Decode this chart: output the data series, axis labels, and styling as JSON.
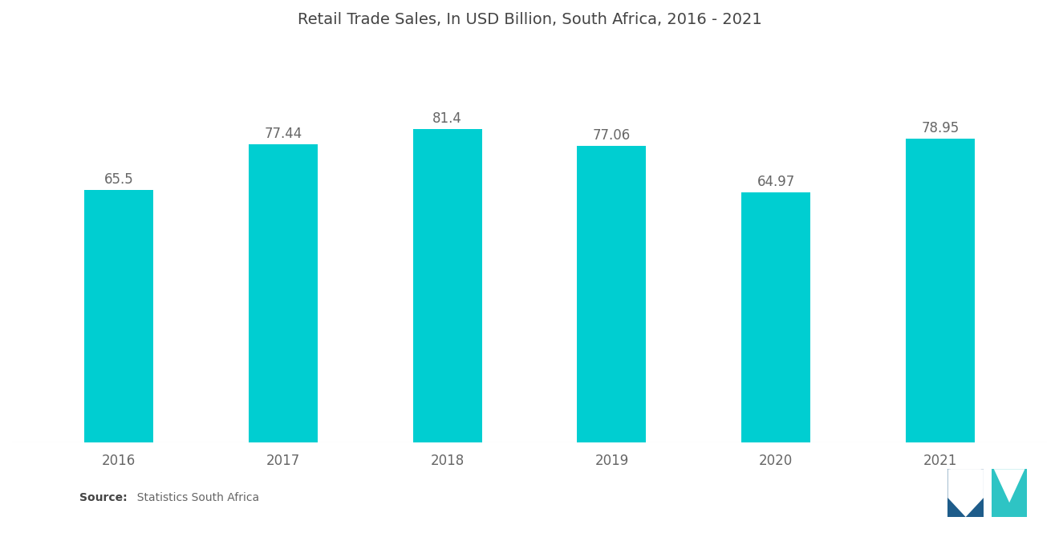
{
  "title": "Retail Trade Sales, In USD Billion, South Africa, 2016 - 2021",
  "categories": [
    "2016",
    "2017",
    "2018",
    "2019",
    "2020",
    "2021"
  ],
  "values": [
    65.5,
    77.44,
    81.4,
    77.06,
    64.97,
    78.95
  ],
  "bar_color": "#00CED1",
  "background_color": "#ffffff",
  "title_fontsize": 14,
  "label_fontsize": 12,
  "tick_fontsize": 12,
  "source_bold": "Source:",
  "source_rest": "  Statistics South Africa",
  "ylim": [
    0,
    100
  ],
  "bar_width": 0.42,
  "label_color": "#666666",
  "tick_color": "#666666",
  "title_color": "#444444",
  "logo_dark": "#1E5C8A",
  "logo_teal": "#2EC4C4"
}
